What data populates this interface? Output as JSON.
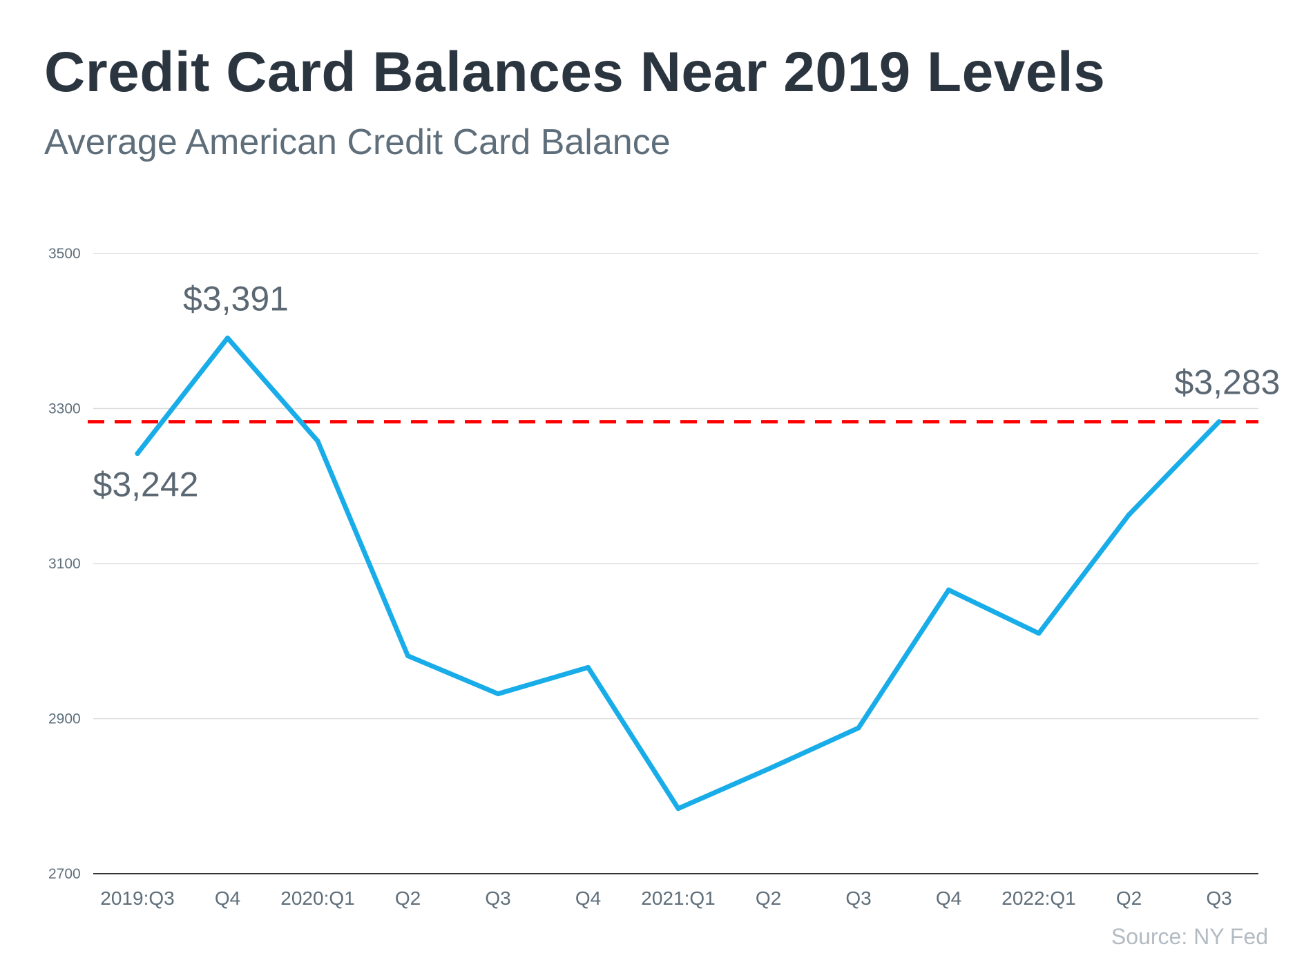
{
  "header": {
    "title": "Credit Card Balances Near 2019 Levels",
    "subtitle": "Average American Credit Card Balance"
  },
  "footer": {
    "source": "Source: NY Fed"
  },
  "colors": {
    "line": "#18ace8",
    "reference": "#ff0000",
    "grid": "#dddddd",
    "axis": "#333333",
    "text": "#5e6e7a"
  },
  "chart_data": {
    "type": "line",
    "title": "Credit Card Balances Near 2019 Levels",
    "subtitle": "Average American Credit Card Balance",
    "xlabel": "",
    "ylabel": "",
    "ylim": [
      2700,
      3500
    ],
    "yticks": [
      2700,
      2900,
      3100,
      3300,
      3500
    ],
    "grid": true,
    "categories": [
      "2019:Q3",
      "Q4",
      "2020:Q1",
      "Q2",
      "Q3",
      "Q4",
      "2021:Q1",
      "Q2",
      "Q3",
      "Q4",
      "2022:Q1",
      "Q2",
      "Q3"
    ],
    "series": [
      {
        "name": "Average American Credit Card Balance",
        "values": [
          3242,
          3391,
          3258,
          2981,
          2932,
          2966,
          2784,
          2835,
          2888,
          3066,
          3010,
          3163,
          3283
        ]
      }
    ],
    "reference_line": {
      "value": 3283,
      "style": "dashed"
    },
    "annotations": [
      {
        "index": 0,
        "text": "$3,242",
        "position": "below"
      },
      {
        "index": 1,
        "text": "$3,391",
        "position": "above"
      },
      {
        "index": 12,
        "text": "$3,283",
        "position": "above"
      }
    ]
  }
}
